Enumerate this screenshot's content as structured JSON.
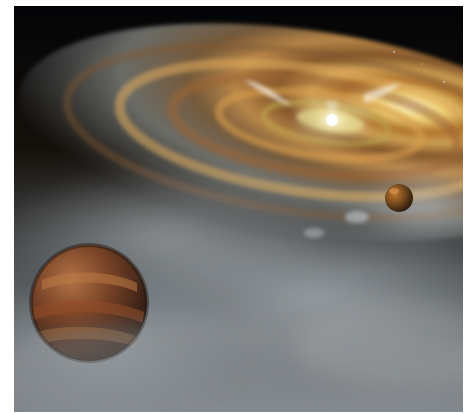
{
  "image": {
    "subject": "protoplanetary-disk-illustration",
    "colors": {
      "space": "#050608",
      "disk_gold": "#c9913e",
      "disk_bright": "#f4e7a2",
      "star": "#ffffff",
      "haze": "#9ea7ad",
      "planet_main": "#6f3d22",
      "planet_band": "#a86a3f"
    }
  }
}
